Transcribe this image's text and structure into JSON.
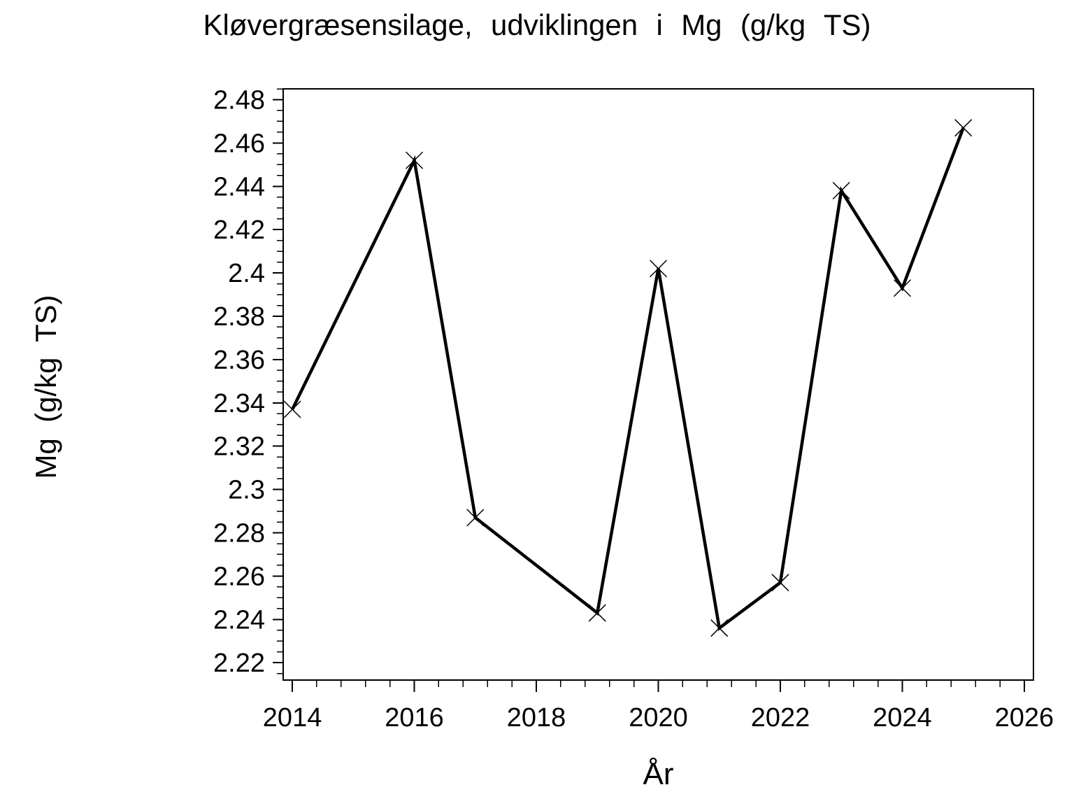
{
  "figure": {
    "title": "Kløvergræsensilage, udviklingen i Mg (g/kg TS)",
    "x_axis_title": "År",
    "y_axis_title": "Mg (g/kg TS)"
  },
  "chart_data": {
    "type": "line",
    "title": "Kløvergræsensilage, udviklingen i Mg (g/kg TS)",
    "xlabel": "År",
    "ylabel": "Mg (g/kg TS)",
    "x": [
      2014,
      2016,
      2017,
      2019,
      2020,
      2021,
      2022,
      2023,
      2024,
      2025
    ],
    "y": [
      2.337,
      2.452,
      2.287,
      2.243,
      2.402,
      2.236,
      2.257,
      2.438,
      2.393,
      2.467
    ],
    "series_name": "Mg (g/kg TS)",
    "marker": "x",
    "line_color": "#000000",
    "background_color": "#ffffff",
    "grid": false,
    "legend": null,
    "xlim": [
      2013.85,
      2026.15
    ],
    "ylim": [
      2.212,
      2.485
    ],
    "x_major_ticks": [
      2014,
      2016,
      2018,
      2020,
      2022,
      2024,
      2026
    ],
    "x_tick_labels": [
      "2014",
      "2016",
      "2018",
      "2020",
      "2022",
      "2024",
      "2026"
    ],
    "x_minor_step": 0.4,
    "y_major_ticks": [
      2.22,
      2.24,
      2.26,
      2.28,
      2.3,
      2.32,
      2.34,
      2.36,
      2.38,
      2.4,
      2.42,
      2.44,
      2.46,
      2.48
    ],
    "y_tick_labels": [
      "2.22",
      "2.24",
      "2.26",
      "2.28",
      "2.3",
      "2.32",
      "2.34",
      "2.36",
      "2.38",
      "2.4",
      "2.42",
      "2.44",
      "2.46",
      "2.48"
    ],
    "y_minor_step": 0.005
  }
}
